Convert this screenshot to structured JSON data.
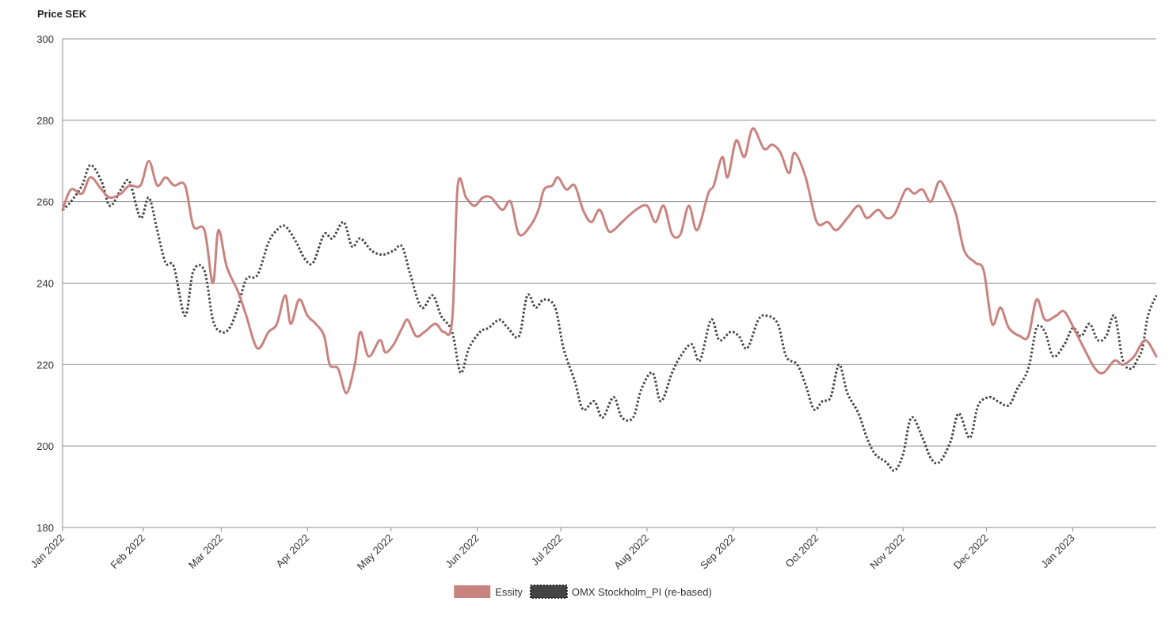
{
  "chart_data": {
    "type": "line",
    "ylabel": "Price SEK",
    "ylim": [
      180,
      300
    ],
    "yticks": [
      180,
      200,
      220,
      240,
      260,
      280,
      300
    ],
    "xlim": [
      "2022-01-03",
      "2023-01-31"
    ],
    "xticks": [
      {
        "date": "2022-01-01",
        "label": "Jan 2022"
      },
      {
        "date": "2022-02-01",
        "label": "Feb 2022"
      },
      {
        "date": "2022-03-01",
        "label": "Mar 2022"
      },
      {
        "date": "2022-04-01",
        "label": "Apr 2022"
      },
      {
        "date": "2022-05-01",
        "label": "May 2022"
      },
      {
        "date": "2022-06-01",
        "label": "Jun 2022"
      },
      {
        "date": "2022-07-01",
        "label": "Jul 2022"
      },
      {
        "date": "2022-08-01",
        "label": "Aug 2022"
      },
      {
        "date": "2022-09-01",
        "label": "Sep 2022"
      },
      {
        "date": "2022-10-01",
        "label": "Oct 2022"
      },
      {
        "date": "2022-11-01",
        "label": "Nov 2022"
      },
      {
        "date": "2022-12-01",
        "label": "Dec 2022"
      },
      {
        "date": "2023-01-01",
        "label": "Jan 2023"
      }
    ],
    "grid": true,
    "legend_position": "bottom-center",
    "series": [
      {
        "name": "Essity",
        "color": "#c9837f",
        "style": "solid",
        "points": [
          [
            "2022-01-03",
            258
          ],
          [
            "2022-01-06",
            263
          ],
          [
            "2022-01-10",
            262
          ],
          [
            "2022-01-13",
            266
          ],
          [
            "2022-01-17",
            263
          ],
          [
            "2022-01-20",
            261
          ],
          [
            "2022-01-24",
            262
          ],
          [
            "2022-01-27",
            264
          ],
          [
            "2022-01-31",
            264
          ],
          [
            "2022-02-03",
            270
          ],
          [
            "2022-02-06",
            264
          ],
          [
            "2022-02-09",
            266
          ],
          [
            "2022-02-12",
            264
          ],
          [
            "2022-02-16",
            264
          ],
          [
            "2022-02-19",
            254
          ],
          [
            "2022-02-23",
            253
          ],
          [
            "2022-02-26",
            240
          ],
          [
            "2022-02-28",
            253
          ],
          [
            "2022-03-03",
            244
          ],
          [
            "2022-03-07",
            238
          ],
          [
            "2022-03-10",
            232
          ],
          [
            "2022-03-14",
            224
          ],
          [
            "2022-03-18",
            228
          ],
          [
            "2022-03-21",
            230
          ],
          [
            "2022-03-24",
            237
          ],
          [
            "2022-03-26",
            230
          ],
          [
            "2022-03-29",
            236
          ],
          [
            "2022-04-01",
            232
          ],
          [
            "2022-04-04",
            230
          ],
          [
            "2022-04-07",
            227
          ],
          [
            "2022-04-09",
            220
          ],
          [
            "2022-04-12",
            219
          ],
          [
            "2022-04-15",
            213
          ],
          [
            "2022-04-18",
            220
          ],
          [
            "2022-04-20",
            228
          ],
          [
            "2022-04-23",
            222
          ],
          [
            "2022-04-27",
            226
          ],
          [
            "2022-04-29",
            223
          ],
          [
            "2022-05-02",
            225
          ],
          [
            "2022-05-05",
            229
          ],
          [
            "2022-05-07",
            231
          ],
          [
            "2022-05-10",
            227
          ],
          [
            "2022-05-13",
            228
          ],
          [
            "2022-05-17",
            230
          ],
          [
            "2022-05-20",
            228
          ],
          [
            "2022-05-23",
            231
          ],
          [
            "2022-05-25",
            264
          ],
          [
            "2022-05-28",
            261
          ],
          [
            "2022-05-31",
            259
          ],
          [
            "2022-06-03",
            261
          ],
          [
            "2022-06-06",
            261
          ],
          [
            "2022-06-10",
            258
          ],
          [
            "2022-06-13",
            260
          ],
          [
            "2022-06-16",
            252
          ],
          [
            "2022-06-20",
            254
          ],
          [
            "2022-06-23",
            258
          ],
          [
            "2022-06-25",
            263
          ],
          [
            "2022-06-28",
            264
          ],
          [
            "2022-06-30",
            266
          ],
          [
            "2022-07-03",
            263
          ],
          [
            "2022-07-06",
            264
          ],
          [
            "2022-07-09",
            258
          ],
          [
            "2022-07-12",
            255
          ],
          [
            "2022-07-15",
            258
          ],
          [
            "2022-07-18",
            253
          ],
          [
            "2022-07-20",
            253
          ],
          [
            "2022-07-23",
            255
          ],
          [
            "2022-07-28",
            258
          ],
          [
            "2022-08-01",
            259
          ],
          [
            "2022-08-04",
            255
          ],
          [
            "2022-08-07",
            259
          ],
          [
            "2022-08-10",
            252
          ],
          [
            "2022-08-13",
            252
          ],
          [
            "2022-08-16",
            259
          ],
          [
            "2022-08-19",
            253
          ],
          [
            "2022-08-23",
            262
          ],
          [
            "2022-08-25",
            264
          ],
          [
            "2022-08-28",
            271
          ],
          [
            "2022-08-30",
            266
          ],
          [
            "2022-09-02",
            275
          ],
          [
            "2022-09-05",
            271
          ],
          [
            "2022-09-08",
            278
          ],
          [
            "2022-09-12",
            273
          ],
          [
            "2022-09-15",
            274
          ],
          [
            "2022-09-18",
            272
          ],
          [
            "2022-09-21",
            267
          ],
          [
            "2022-09-23",
            272
          ],
          [
            "2022-09-27",
            266
          ],
          [
            "2022-10-01",
            255
          ],
          [
            "2022-10-05",
            255
          ],
          [
            "2022-10-08",
            253
          ],
          [
            "2022-10-12",
            256
          ],
          [
            "2022-10-16",
            259
          ],
          [
            "2022-10-19",
            256
          ],
          [
            "2022-10-23",
            258
          ],
          [
            "2022-10-26",
            256
          ],
          [
            "2022-10-29",
            257
          ],
          [
            "2022-11-02",
            263
          ],
          [
            "2022-11-05",
            262
          ],
          [
            "2022-11-08",
            263
          ],
          [
            "2022-11-11",
            260
          ],
          [
            "2022-11-14",
            265
          ],
          [
            "2022-11-17",
            262
          ],
          [
            "2022-11-20",
            257
          ],
          [
            "2022-11-23",
            248
          ],
          [
            "2022-11-27",
            245
          ],
          [
            "2022-11-30",
            243
          ],
          [
            "2022-12-03",
            230
          ],
          [
            "2022-12-06",
            234
          ],
          [
            "2022-12-09",
            229
          ],
          [
            "2022-12-13",
            227
          ],
          [
            "2022-12-16",
            227
          ],
          [
            "2022-12-19",
            236
          ],
          [
            "2022-12-22",
            231
          ],
          [
            "2022-12-26",
            232
          ],
          [
            "2022-12-29",
            233
          ],
          [
            "2023-01-02",
            228
          ],
          [
            "2023-01-05",
            224
          ],
          [
            "2023-01-09",
            219
          ],
          [
            "2023-01-12",
            218
          ],
          [
            "2023-01-16",
            221
          ],
          [
            "2023-01-19",
            220
          ],
          [
            "2023-01-23",
            222
          ],
          [
            "2023-01-27",
            226
          ],
          [
            "2023-01-31",
            222
          ]
        ]
      },
      {
        "name": "OMX Stockholm_PI (re-based)",
        "color": "#444444",
        "style": "dotted",
        "points": [
          [
            "2022-01-03",
            258
          ],
          [
            "2022-01-06",
            260
          ],
          [
            "2022-01-10",
            264
          ],
          [
            "2022-01-13",
            269
          ],
          [
            "2022-01-17",
            265
          ],
          [
            "2022-01-20",
            259
          ],
          [
            "2022-01-24",
            263
          ],
          [
            "2022-01-27",
            265
          ],
          [
            "2022-01-31",
            256
          ],
          [
            "2022-02-03",
            261
          ],
          [
            "2022-02-06",
            253
          ],
          [
            "2022-02-09",
            245
          ],
          [
            "2022-02-12",
            244
          ],
          [
            "2022-02-16",
            232
          ],
          [
            "2022-02-19",
            243
          ],
          [
            "2022-02-23",
            243
          ],
          [
            "2022-02-26",
            231
          ],
          [
            "2022-03-01",
            228
          ],
          [
            "2022-03-04",
            229
          ],
          [
            "2022-03-07",
            234
          ],
          [
            "2022-03-10",
            241
          ],
          [
            "2022-03-14",
            242
          ],
          [
            "2022-03-18",
            250
          ],
          [
            "2022-03-21",
            253
          ],
          [
            "2022-03-24",
            254
          ],
          [
            "2022-03-28",
            250
          ],
          [
            "2022-03-31",
            246
          ],
          [
            "2022-04-03",
            245
          ],
          [
            "2022-04-07",
            252
          ],
          [
            "2022-04-10",
            251
          ],
          [
            "2022-04-14",
            255
          ],
          [
            "2022-04-17",
            249
          ],
          [
            "2022-04-20",
            251
          ],
          [
            "2022-04-24",
            248
          ],
          [
            "2022-04-28",
            247
          ],
          [
            "2022-05-02",
            248
          ],
          [
            "2022-05-05",
            249
          ],
          [
            "2022-05-08",
            242
          ],
          [
            "2022-05-12",
            234
          ],
          [
            "2022-05-16",
            237
          ],
          [
            "2022-05-19",
            232
          ],
          [
            "2022-05-23",
            228
          ],
          [
            "2022-05-26",
            218
          ],
          [
            "2022-05-29",
            224
          ],
          [
            "2022-06-02",
            228
          ],
          [
            "2022-06-05",
            229
          ],
          [
            "2022-06-09",
            231
          ],
          [
            "2022-06-12",
            229
          ],
          [
            "2022-06-16",
            227
          ],
          [
            "2022-06-19",
            237
          ],
          [
            "2022-06-22",
            234
          ],
          [
            "2022-06-25",
            236
          ],
          [
            "2022-06-29",
            234
          ],
          [
            "2022-07-02",
            224
          ],
          [
            "2022-07-06",
            216
          ],
          [
            "2022-07-09",
            209
          ],
          [
            "2022-07-13",
            211
          ],
          [
            "2022-07-16",
            207
          ],
          [
            "2022-07-20",
            212
          ],
          [
            "2022-07-23",
            207
          ],
          [
            "2022-07-27",
            207
          ],
          [
            "2022-07-30",
            214
          ],
          [
            "2022-08-03",
            218
          ],
          [
            "2022-08-06",
            211
          ],
          [
            "2022-08-10",
            218
          ],
          [
            "2022-08-13",
            222
          ],
          [
            "2022-08-17",
            225
          ],
          [
            "2022-08-20",
            221
          ],
          [
            "2022-08-24",
            231
          ],
          [
            "2022-08-27",
            226
          ],
          [
            "2022-08-31",
            228
          ],
          [
            "2022-09-03",
            227
          ],
          [
            "2022-09-06",
            224
          ],
          [
            "2022-09-10",
            231
          ],
          [
            "2022-09-13",
            232
          ],
          [
            "2022-09-17",
            230
          ],
          [
            "2022-09-20",
            222
          ],
          [
            "2022-09-24",
            220
          ],
          [
            "2022-09-27",
            215
          ],
          [
            "2022-09-30",
            209
          ],
          [
            "2022-10-03",
            211
          ],
          [
            "2022-10-06",
            212
          ],
          [
            "2022-10-09",
            220
          ],
          [
            "2022-10-12",
            213
          ],
          [
            "2022-10-16",
            208
          ],
          [
            "2022-10-19",
            202
          ],
          [
            "2022-10-22",
            198
          ],
          [
            "2022-10-26",
            196
          ],
          [
            "2022-10-29",
            194
          ],
          [
            "2022-11-01",
            198
          ],
          [
            "2022-11-04",
            207
          ],
          [
            "2022-11-08",
            202
          ],
          [
            "2022-11-11",
            197
          ],
          [
            "2022-11-14",
            196
          ],
          [
            "2022-11-18",
            201
          ],
          [
            "2022-11-21",
            208
          ],
          [
            "2022-11-25",
            202
          ],
          [
            "2022-11-28",
            210
          ],
          [
            "2022-12-02",
            212
          ],
          [
            "2022-12-05",
            211
          ],
          [
            "2022-12-09",
            210
          ],
          [
            "2022-12-12",
            214
          ],
          [
            "2022-12-16",
            219
          ],
          [
            "2022-12-19",
            229
          ],
          [
            "2022-12-22",
            228
          ],
          [
            "2022-12-25",
            222
          ],
          [
            "2022-12-29",
            225
          ],
          [
            "2023-01-01",
            229
          ],
          [
            "2023-01-04",
            227
          ],
          [
            "2023-01-07",
            230
          ],
          [
            "2023-01-10",
            226
          ],
          [
            "2023-01-13",
            227
          ],
          [
            "2023-01-16",
            232
          ],
          [
            "2023-01-19",
            221
          ],
          [
            "2023-01-22",
            219
          ],
          [
            "2023-01-24",
            221
          ],
          [
            "2023-01-26",
            224
          ],
          [
            "2023-01-28",
            232
          ],
          [
            "2023-01-31",
            237
          ]
        ]
      }
    ]
  }
}
